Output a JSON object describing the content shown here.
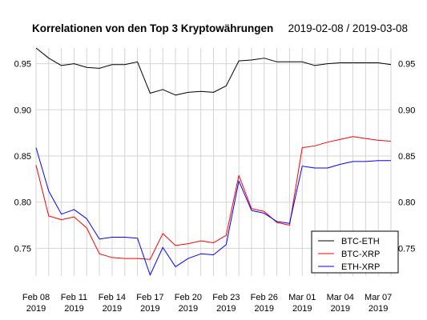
{
  "chart_data": {
    "type": "line",
    "title": "Korrelationen von den Top 3 Kryptowährungen",
    "subtitle": "2019-02-08 / 2019-03-08",
    "xlabel": "",
    "ylabel": "",
    "x": [
      "2019-02-08",
      "2019-02-09",
      "2019-02-10",
      "2019-02-11",
      "2019-02-12",
      "2019-02-13",
      "2019-02-14",
      "2019-02-15",
      "2019-02-16",
      "2019-02-17",
      "2019-02-18",
      "2019-02-19",
      "2019-02-20",
      "2019-02-21",
      "2019-02-22",
      "2019-02-23",
      "2019-02-24",
      "2019-02-25",
      "2019-02-26",
      "2019-02-27",
      "2019-02-28",
      "2019-03-01",
      "2019-03-02",
      "2019-03-03",
      "2019-03-04",
      "2019-03-05",
      "2019-03-06",
      "2019-03-07",
      "2019-03-08"
    ],
    "series": [
      {
        "name": "BTC-ETH",
        "color": "#000000",
        "values": [
          0.967,
          0.956,
          0.948,
          0.95,
          0.946,
          0.945,
          0.949,
          0.949,
          0.952,
          0.918,
          0.922,
          0.916,
          0.919,
          0.92,
          0.919,
          0.926,
          0.953,
          0.954,
          0.956,
          0.952,
          0.952,
          0.952,
          0.948,
          0.95,
          0.951,
          0.951,
          0.951,
          0.951,
          0.949
        ]
      },
      {
        "name": "BTC-XRP",
        "color": "#ff0000",
        "values": [
          0.84,
          0.785,
          0.781,
          0.784,
          0.772,
          0.744,
          0.74,
          0.739,
          0.739,
          0.738,
          0.766,
          0.753,
          0.755,
          0.758,
          0.756,
          0.764,
          0.829,
          0.793,
          0.79,
          0.778,
          0.775,
          0.859,
          0.861,
          0.865,
          0.868,
          0.871,
          0.869,
          0.867,
          0.866
        ]
      },
      {
        "name": "ETH-XRP",
        "color": "#0000ff",
        "values": [
          0.859,
          0.812,
          0.787,
          0.792,
          0.782,
          0.76,
          0.762,
          0.762,
          0.761,
          0.721,
          0.751,
          0.73,
          0.739,
          0.744,
          0.743,
          0.754,
          0.823,
          0.791,
          0.788,
          0.779,
          0.777,
          0.839,
          0.837,
          0.837,
          0.841,
          0.844,
          0.844,
          0.845,
          0.845
        ]
      }
    ],
    "ylim": [
      0.72,
      0.967
    ],
    "yticks": [
      0.75,
      0.8,
      0.85,
      0.9,
      0.95
    ],
    "ytick_labels": [
      "0.75",
      "0.80",
      "0.85",
      "0.90",
      "0.95"
    ],
    "xticks": [
      {
        "date": "2019-02-08",
        "line1": "Feb 08",
        "line2": "2019"
      },
      {
        "date": "2019-02-11",
        "line1": "Feb 11",
        "line2": "2019"
      },
      {
        "date": "2019-02-14",
        "line1": "Feb 14",
        "line2": "2019"
      },
      {
        "date": "2019-02-17",
        "line1": "Feb 17",
        "line2": "2019"
      },
      {
        "date": "2019-02-20",
        "line1": "Feb 20",
        "line2": "2019"
      },
      {
        "date": "2019-02-23",
        "line1": "Feb 23",
        "line2": "2019"
      },
      {
        "date": "2019-02-26",
        "line1": "Feb 26",
        "line2": "2019"
      },
      {
        "date": "2019-03-01",
        "line1": "Mar 01",
        "line2": "2019"
      },
      {
        "date": "2019-03-04",
        "line1": "Mar 04",
        "line2": "2019"
      },
      {
        "date": "2019-03-07",
        "line1": "Mar 07",
        "line2": "2019"
      }
    ],
    "grid": true,
    "legend_position": "bottom-right"
  }
}
